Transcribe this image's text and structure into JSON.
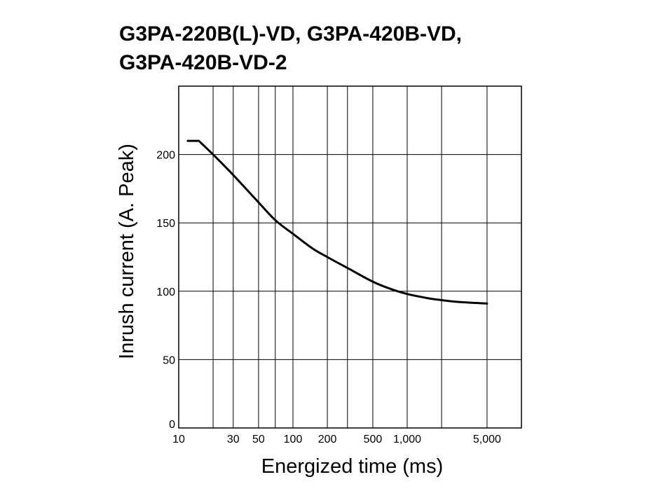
{
  "chart_data": {
    "type": "line",
    "title_lines": [
      "G3PA-220B(L)-VD, G3PA-420B-VD,",
      "G3PA-420B-VD-2"
    ],
    "xlabel": "Energized time (ms)",
    "ylabel": "Inrush current (A. Peak)",
    "x_scale": "log",
    "xlim": [
      10,
      10000
    ],
    "ylim": [
      0,
      250
    ],
    "grid": true,
    "x_ticks": [
      {
        "value": 10,
        "label": "10"
      },
      {
        "value": 20,
        "label": ""
      },
      {
        "value": 30,
        "label": "30"
      },
      {
        "value": 50,
        "label": "50"
      },
      {
        "value": 70,
        "label": ""
      },
      {
        "value": 100,
        "label": "100"
      },
      {
        "value": 200,
        "label": "200"
      },
      {
        "value": 300,
        "label": ""
      },
      {
        "value": 500,
        "label": "500"
      },
      {
        "value": 1000,
        "label": "1,000"
      },
      {
        "value": 2000,
        "label": ""
      },
      {
        "value": 5000,
        "label": "5,000"
      }
    ],
    "y_ticks": [
      {
        "value": 0,
        "label": "0"
      },
      {
        "value": 50,
        "label": "50"
      },
      {
        "value": 100,
        "label": "100"
      },
      {
        "value": 150,
        "label": "150"
      },
      {
        "value": 200,
        "label": "200"
      },
      {
        "value": 250,
        "label": ""
      }
    ],
    "series": [
      {
        "color": "#000000",
        "x": [
          12,
          15,
          20,
          30,
          50,
          70,
          100,
          150,
          200,
          300,
          500,
          700,
          1000,
          1500,
          2000,
          3000,
          5000
        ],
        "y": [
          210,
          210,
          200,
          185,
          165,
          152,
          142,
          131,
          125,
          117,
          107,
          102,
          98,
          95,
          93.5,
          92,
          91
        ]
      }
    ]
  }
}
